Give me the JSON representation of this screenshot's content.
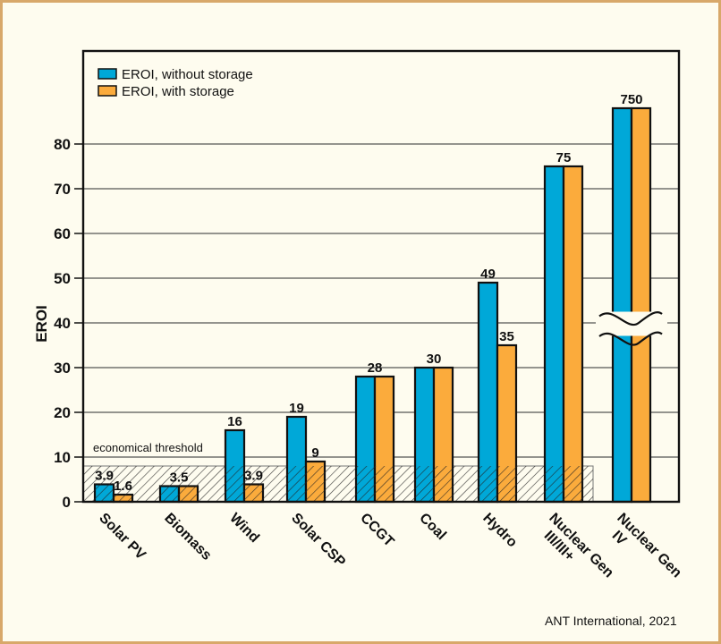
{
  "chart_data": {
    "type": "bar",
    "title": "",
    "xlabel": "",
    "ylabel": "EROI",
    "ylim": [
      0,
      90
    ],
    "yticks": [
      0,
      10,
      20,
      30,
      40,
      50,
      60,
      70,
      80
    ],
    "grid": true,
    "legend_position": "top-left",
    "categories": [
      "Solar PV",
      "Biomass",
      "Wind",
      "Solar CSP",
      "CCGT",
      "Coal",
      "Hydro",
      "Nuclear Gen III/III+",
      "Nuclear Gen IV"
    ],
    "category_label_lines": [
      [
        "Solar PV"
      ],
      [
        "Biomass"
      ],
      [
        "Wind"
      ],
      [
        "Solar CSP"
      ],
      [
        "CCGT"
      ],
      [
        "Coal"
      ],
      [
        "Hydro"
      ],
      [
        "Nuclear Gen",
        "III/III+"
      ],
      [
        "Nuclear Gen",
        "IV"
      ]
    ],
    "series": [
      {
        "name": "EROI, without storage",
        "color": "#00a8d8",
        "values": [
          3.9,
          3.5,
          16,
          19,
          28,
          30,
          49,
          75,
          750
        ],
        "labels": [
          "3.9",
          "3.5",
          "16",
          "19",
          "28",
          "30",
          "49",
          "",
          "750"
        ]
      },
      {
        "name": "EROI, with storage",
        "color": "#fbab3c",
        "values": [
          1.6,
          3.5,
          3.9,
          9,
          28,
          30,
          35,
          75,
          750
        ],
        "labels": [
          "1.6",
          "",
          "3.9",
          "9",
          "",
          "",
          "35",
          "75",
          ""
        ]
      }
    ],
    "shared_labels": [
      "",
      "3.5",
      "",
      "",
      "28",
      "30",
      "",
      "75",
      "750"
    ],
    "axis_break": {
      "category": "Nuclear Gen IV",
      "between": [
        40,
        40
      ]
    },
    "threshold": {
      "label": "economical threshold",
      "value": 8
    },
    "annotation": "ANT International, 2021"
  },
  "colors": {
    "frame": "#d8a86a",
    "background": "#fefcef"
  }
}
